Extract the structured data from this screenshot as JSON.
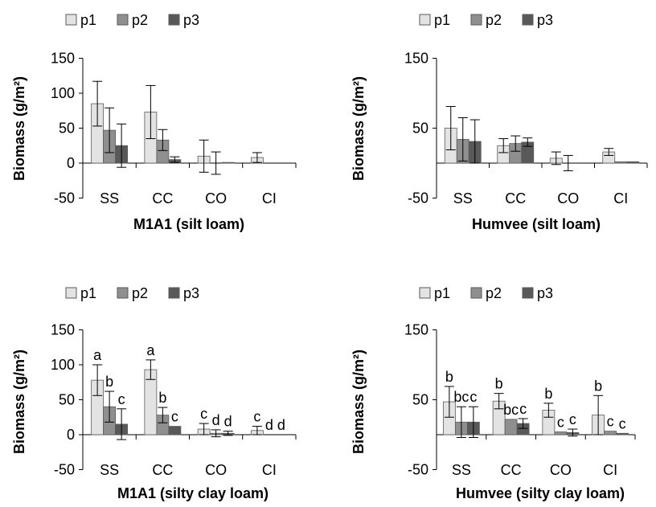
{
  "chart_data": [
    {
      "type": "bar",
      "title": "M1A1 (silt loam)",
      "ylabel": "Biomass (g/m²)",
      "ylim": [
        -50,
        150
      ],
      "yticks": [
        150,
        100,
        50,
        0,
        -50
      ],
      "categories": [
        "SS",
        "CC",
        "CO",
        "CI"
      ],
      "legend": {
        "placement": "top"
      },
      "series": [
        {
          "name": "p1",
          "values": [
            85,
            73,
            10,
            8
          ],
          "errors": [
            32,
            38,
            23,
            7
          ]
        },
        {
          "name": "p2",
          "values": [
            47,
            33,
            0,
            0
          ],
          "errors": [
            32,
            15,
            16,
            0
          ]
        },
        {
          "name": "p3",
          "values": [
            25,
            5,
            1,
            0
          ],
          "errors": [
            31,
            4,
            0,
            0
          ]
        }
      ]
    },
    {
      "type": "bar",
      "title": "Humvee (silt loam)",
      "ylabel": "Biomass (g/m²)",
      "ylim": [
        -50,
        150
      ],
      "yticks": [
        150,
        50,
        -50
      ],
      "categories": [
        "SS",
        "CC",
        "CO",
        "CI"
      ],
      "legend": {
        "placement": "top"
      },
      "series": [
        {
          "name": "p1",
          "values": [
            50,
            25,
            7,
            16
          ],
          "errors": [
            31,
            10,
            9,
            5
          ]
        },
        {
          "name": "p2",
          "values": [
            34,
            28,
            0,
            2
          ],
          "errors": [
            31,
            11,
            11,
            0
          ]
        },
        {
          "name": "p3",
          "values": [
            31,
            30,
            0,
            2
          ],
          "errors": [
            31,
            6,
            0,
            0
          ]
        }
      ]
    },
    {
      "type": "bar",
      "title": "M1A1 (silty clay loam)",
      "ylabel": "Biomass (g/m²)",
      "ylim": [
        -50,
        150
      ],
      "yticks": [
        150,
        100,
        50,
        0,
        -50
      ],
      "categories": [
        "SS",
        "CC",
        "CO",
        "CI"
      ],
      "legend": {
        "placement": "top"
      },
      "series": [
        {
          "name": "p1",
          "values": [
            78,
            93,
            8,
            6
          ],
          "errors": [
            22,
            14,
            8,
            6
          ]
        },
        {
          "name": "p2",
          "values": [
            40,
            28,
            2,
            0
          ],
          "errors": [
            22,
            11,
            5,
            0
          ]
        },
        {
          "name": "p3",
          "values": [
            15,
            12,
            2,
            0
          ],
          "errors": [
            22,
            0,
            3,
            0
          ]
        }
      ],
      "letters": [
        [
          "a",
          "b",
          "c"
        ],
        [
          "a",
          "b",
          "c"
        ],
        [
          "c",
          "d",
          "d"
        ],
        [
          "c",
          "d",
          "d"
        ]
      ]
    },
    {
      "type": "bar",
      "title": "Humvee (silty clay loam)",
      "ylabel": "Biomass (g/m²)",
      "ylim": [
        -50,
        150
      ],
      "yticks": [
        150,
        50,
        -50
      ],
      "categories": [
        "SS",
        "CC",
        "CO",
        "CI"
      ],
      "legend": {
        "placement": "top"
      },
      "series": [
        {
          "name": "p1",
          "values": [
            47,
            48,
            35,
            28
          ],
          "errors": [
            22,
            11,
            10,
            28
          ]
        },
        {
          "name": "p2",
          "values": [
            18,
            22,
            4,
            5
          ],
          "errors": [
            22,
            0,
            0,
            0
          ]
        },
        {
          "name": "p3",
          "values": [
            18,
            16,
            3,
            2
          ],
          "errors": [
            22,
            7,
            5,
            0
          ]
        }
      ],
      "letters": [
        [
          "b",
          "bc",
          "c"
        ],
        [
          "b",
          "bc",
          "c"
        ],
        [
          "b",
          "c",
          "c"
        ],
        [
          "b",
          "c",
          "c"
        ]
      ]
    }
  ],
  "colors": {
    "p1": "#e3e3e3",
    "p2": "#8f8f8f",
    "p3": "#595959",
    "axis": "#000000",
    "stroke": "#5a5a5a"
  }
}
